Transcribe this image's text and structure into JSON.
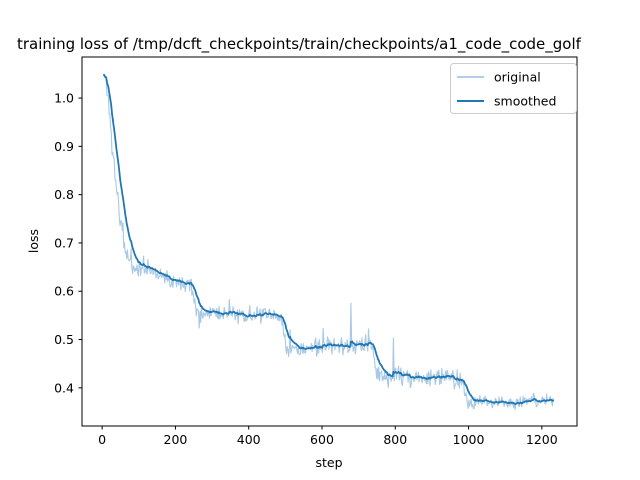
{
  "title": "training loss of /tmp/dcft_checkpoints/train/checkpoints/a1_code_code_golf",
  "axes": {
    "xlabel": "step",
    "ylabel": "loss",
    "x_ticks": [
      0,
      200,
      400,
      600,
      800,
      1000,
      1200
    ],
    "y_ticks": [
      "0.4",
      "0.5",
      "0.6",
      "0.7",
      "0.8",
      "0.9",
      "1.0"
    ],
    "xlim": [
      -55,
      1296
    ],
    "ylim": [
      0.321,
      1.085
    ]
  },
  "legend": {
    "items": [
      {
        "label": "original",
        "color": "#a8c8e4"
      },
      {
        "label": "smoothed",
        "color": "#1f77b4"
      }
    ]
  },
  "colors": {
    "original_line": "#a8c8e4",
    "smoothed_line": "#1f77b4",
    "frame": "#000000",
    "legend_border": "#cccccc",
    "background": "#ffffff"
  },
  "chart_data": {
    "type": "line",
    "title": "training loss of /tmp/dcft_checkpoints/train/checkpoints/a1_code_code_golf",
    "xlabel": "step",
    "ylabel": "loss",
    "xlim": [
      -55,
      1296
    ],
    "ylim": [
      0.321,
      1.085
    ],
    "x_range": [
      5,
      1232
    ],
    "grid": false,
    "legend_position": "upper right",
    "epoch_drop_steps": [
      247,
      494,
      741,
      988
    ],
    "series": [
      {
        "name": "original",
        "color": "#a8c8e4",
        "kind": "raw_noisy",
        "linewidth": 1.1,
        "anchors": [
          [
            5,
            1.045
          ],
          [
            10,
            1.04
          ],
          [
            15,
            1.01
          ],
          [
            20,
            0.965
          ],
          [
            25,
            0.92
          ],
          [
            30,
            0.885
          ],
          [
            35,
            0.845
          ],
          [
            40,
            0.81
          ],
          [
            45,
            0.775
          ],
          [
            50,
            0.745
          ],
          [
            55,
            0.72
          ],
          [
            60,
            0.7
          ],
          [
            65,
            0.685
          ],
          [
            70,
            0.673
          ],
          [
            75,
            0.664
          ],
          [
            80,
            0.658
          ],
          [
            90,
            0.652
          ],
          [
            100,
            0.65
          ],
          [
            110,
            0.647
          ],
          [
            120,
            0.645
          ],
          [
            128,
            0.648
          ],
          [
            135,
            0.644
          ],
          [
            145,
            0.637
          ],
          [
            155,
            0.634
          ],
          [
            165,
            0.636
          ],
          [
            175,
            0.633
          ],
          [
            185,
            0.627
          ],
          [
            195,
            0.622
          ],
          [
            205,
            0.62
          ],
          [
            215,
            0.622
          ],
          [
            225,
            0.62
          ],
          [
            235,
            0.618
          ],
          [
            243,
            0.614
          ],
          [
            248,
            0.59
          ],
          [
            253,
            0.57
          ],
          [
            258,
            0.562
          ],
          [
            265,
            0.558
          ],
          [
            275,
            0.556
          ],
          [
            285,
            0.555
          ],
          [
            295,
            0.557
          ],
          [
            305,
            0.559
          ],
          [
            315,
            0.557
          ],
          [
            325,
            0.554
          ],
          [
            335,
            0.552
          ],
          [
            345,
            0.553
          ],
          [
            355,
            0.555
          ],
          [
            365,
            0.553
          ],
          [
            375,
            0.551
          ],
          [
            385,
            0.549
          ],
          [
            395,
            0.551
          ],
          [
            405,
            0.553
          ],
          [
            415,
            0.551
          ],
          [
            425,
            0.548
          ],
          [
            435,
            0.549
          ],
          [
            445,
            0.551
          ],
          [
            455,
            0.549
          ],
          [
            465,
            0.547
          ],
          [
            475,
            0.548
          ],
          [
            485,
            0.546
          ],
          [
            492,
            0.54
          ],
          [
            497,
            0.51
          ],
          [
            502,
            0.49
          ],
          [
            508,
            0.483
          ],
          [
            515,
            0.48
          ],
          [
            525,
            0.479
          ],
          [
            540,
            0.48
          ],
          [
            560,
            0.482
          ],
          [
            580,
            0.484
          ],
          [
            600,
            0.487
          ],
          [
            615,
            0.489
          ],
          [
            630,
            0.49
          ],
          [
            645,
            0.49
          ],
          [
            660,
            0.487
          ],
          [
            675,
            0.485
          ],
          [
            690,
            0.485
          ],
          [
            700,
            0.486
          ],
          [
            712,
            0.488
          ],
          [
            722,
            0.487
          ],
          [
            732,
            0.485
          ],
          [
            739,
            0.478
          ],
          [
            744,
            0.45
          ],
          [
            749,
            0.432
          ],
          [
            755,
            0.426
          ],
          [
            765,
            0.423
          ],
          [
            780,
            0.422
          ],
          [
            795,
            0.424
          ],
          [
            810,
            0.425
          ],
          [
            825,
            0.424
          ],
          [
            840,
            0.422
          ],
          [
            855,
            0.423
          ],
          [
            870,
            0.422
          ],
          [
            885,
            0.421
          ],
          [
            900,
            0.422
          ],
          [
            915,
            0.421
          ],
          [
            930,
            0.421
          ],
          [
            945,
            0.42
          ],
          [
            960,
            0.419
          ],
          [
            975,
            0.418
          ],
          [
            985,
            0.415
          ],
          [
            990,
            0.395
          ],
          [
            995,
            0.375
          ],
          [
            1000,
            0.368
          ],
          [
            1008,
            0.366
          ],
          [
            1015,
            0.368
          ],
          [
            1025,
            0.369
          ],
          [
            1040,
            0.37
          ],
          [
            1060,
            0.371
          ],
          [
            1080,
            0.372
          ],
          [
            1100,
            0.371
          ],
          [
            1120,
            0.37
          ],
          [
            1140,
            0.372
          ],
          [
            1160,
            0.373
          ],
          [
            1180,
            0.372
          ],
          [
            1200,
            0.373
          ],
          [
            1215,
            0.374
          ],
          [
            1232,
            0.375
          ]
        ],
        "noise": {
          "seed": 11,
          "sample_step": 2,
          "segments": [
            [
              5,
              100,
              0.02
            ],
            [
              100,
              985,
              0.015
            ],
            [
              985,
              1232,
              0.011
            ]
          ]
        },
        "spikes": [
          [
            513,
            0.52
          ],
          [
            602,
            0.523
          ],
          [
            678,
            0.575
          ],
          [
            726,
            0.522
          ],
          [
            794,
            0.503
          ],
          [
            998,
            0.357
          ],
          [
            509,
            0.465
          ]
        ]
      },
      {
        "name": "smoothed",
        "color": "#1f77b4",
        "kind": "ema_of_original",
        "linewidth": 1.8,
        "smoothing_weight": 0.88
      }
    ]
  }
}
